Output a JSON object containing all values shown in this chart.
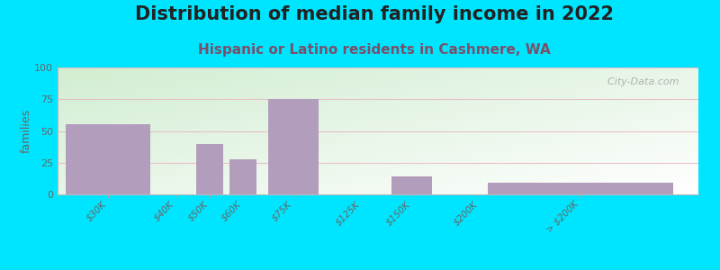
{
  "title": "Distribution of median family income in 2022",
  "subtitle": "Hispanic or Latino residents in Cashmere, WA",
  "ylabel": "families",
  "categories": [
    "$30K",
    "$40K",
    "$50K",
    "$60K",
    "$75K",
    "$125K",
    "$150K",
    "$200K",
    "> $200K"
  ],
  "values": [
    55,
    0,
    40,
    28,
    75,
    0,
    14,
    0,
    9
  ],
  "bar_color": "#b39dbd",
  "background_outer": "#00e5ff",
  "ylim": [
    0,
    100
  ],
  "yticks": [
    0,
    25,
    50,
    75,
    100
  ],
  "title_fontsize": 15,
  "subtitle_fontsize": 11,
  "watermark": "  City-Data.com",
  "bar_positions": [
    1.5,
    3.5,
    4.5,
    5.5,
    7.0,
    9.0,
    10.5,
    12.5,
    15.5
  ],
  "bar_widths": [
    2.5,
    0.0,
    0.8,
    0.8,
    1.5,
    0.0,
    1.2,
    0.0,
    5.5
  ],
  "xlim": [
    0,
    19
  ]
}
